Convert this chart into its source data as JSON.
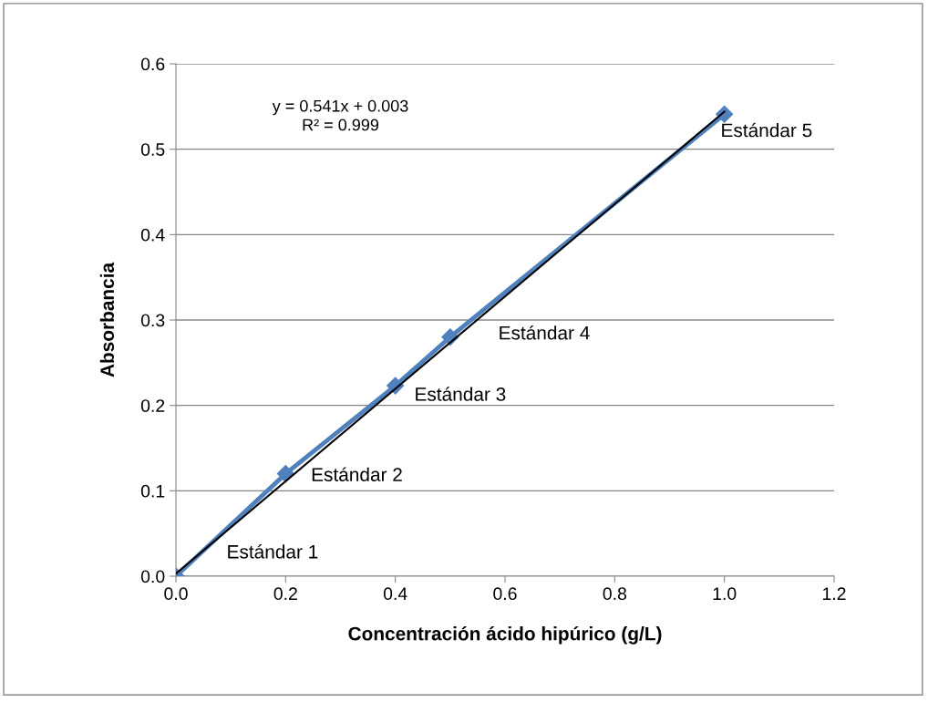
{
  "chart_data": {
    "type": "line",
    "xlabel": "Concentración ácido hipúrico (g/L)",
    "ylabel": "Absorbancia",
    "series": [
      {
        "color": "#4f81bd",
        "marker": "diamond",
        "x": [
          0,
          0.2,
          0.4,
          0.5,
          1.0
        ],
        "values": [
          0,
          0.12,
          0.223,
          0.28,
          0.541
        ]
      },
      {
        "type": "line",
        "color": "#000000",
        "marker": "none",
        "x": [
          0,
          1.0
        ],
        "values": [
          0.003,
          0.544
        ]
      }
    ],
    "xlim": [
      0,
      1.2
    ],
    "xticks": [
      {
        "value": 0,
        "label": "0.0"
      },
      {
        "value": 0.2,
        "label": "0.2"
      },
      {
        "value": 0.4,
        "label": "0.4"
      },
      {
        "value": 0.6,
        "label": "0.6"
      },
      {
        "value": 0.8,
        "label": "0.8"
      },
      {
        "value": 1.0,
        "label": "1.0"
      },
      {
        "value": 1.2,
        "label": "1.2"
      }
    ],
    "ylim": [
      0,
      0.6
    ],
    "yticks": [
      {
        "value": 0,
        "label": "0.0"
      },
      {
        "value": 0.1,
        "label": "0.1"
      },
      {
        "value": 0.2,
        "label": "0.2"
      },
      {
        "value": 0.3,
        "label": "0.3"
      },
      {
        "value": 0.4,
        "label": "0.4"
      },
      {
        "value": 0.5,
        "label": "0.5"
      },
      {
        "value": 0.6,
        "label": "0.6"
      }
    ],
    "grid": "y",
    "line_style": "solid",
    "annotations": [
      "y = 0.541x + 0.003\nR² = 0.999",
      {
        "text": "Estándar 1",
        "x": 0,
        "y": 0
      },
      {
        "text": "Estándar 2",
        "x": 0.2,
        "y": 0.12
      },
      {
        "text": "Estándar 3",
        "x": 0.4,
        "y": 0.223
      },
      {
        "text": "Estándar 4",
        "x": 0.5,
        "y": 0.28
      },
      {
        "text": "Estándar 5",
        "x": 1.0,
        "y": 0.541
      }
    ]
  }
}
